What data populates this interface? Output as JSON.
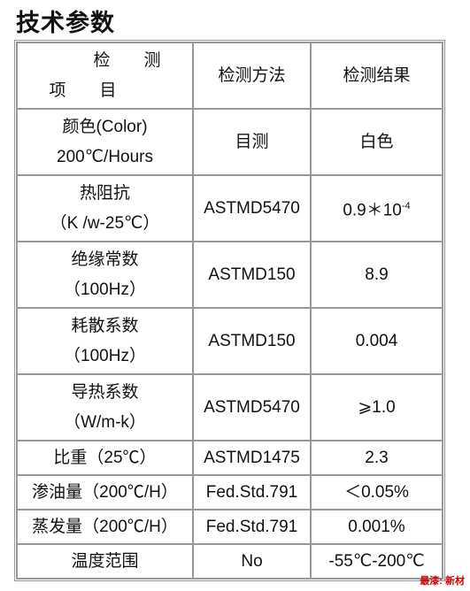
{
  "title": "技术参数",
  "table": {
    "header": {
      "item": [
        "检　　测",
        "项　　目"
      ],
      "method": "检测方法",
      "result": "检测结果"
    },
    "rows": [
      {
        "item": [
          "颜色(Color)",
          "200℃/Hours"
        ],
        "method": "目测",
        "result": "白色"
      },
      {
        "item": [
          "热阻抗",
          "（K /w-25℃）"
        ],
        "method": "ASTMD5470",
        "result": "0.9＊10",
        "result_sup": "-4"
      },
      {
        "item": [
          "绝缘常数",
          "（100Hz）"
        ],
        "method": "ASTMD150",
        "result": "8.9"
      },
      {
        "item": [
          "耗散系数",
          "（100Hz）"
        ],
        "method": "ASTMD150",
        "result": "0.004"
      },
      {
        "item": [
          "导热系数",
          "（W/m-k）"
        ],
        "method": "ASTMD5470",
        "result": "⩾1.0"
      },
      {
        "item": [
          "比重（25℃）"
        ],
        "method": "ASTMD1475",
        "result": "2.3"
      },
      {
        "item": [
          "渗油量（200℃/H）"
        ],
        "method": "Fed.Std.791",
        "result": "＜0.05%"
      },
      {
        "item": [
          "蒸发量（200℃/H）"
        ],
        "method": "Fed.Std.791",
        "result": "0.001%"
      },
      {
        "item": [
          "温度范围"
        ],
        "method": "No",
        "result": "-55℃-200℃"
      }
    ]
  },
  "watermark": "最漆: 新材"
}
